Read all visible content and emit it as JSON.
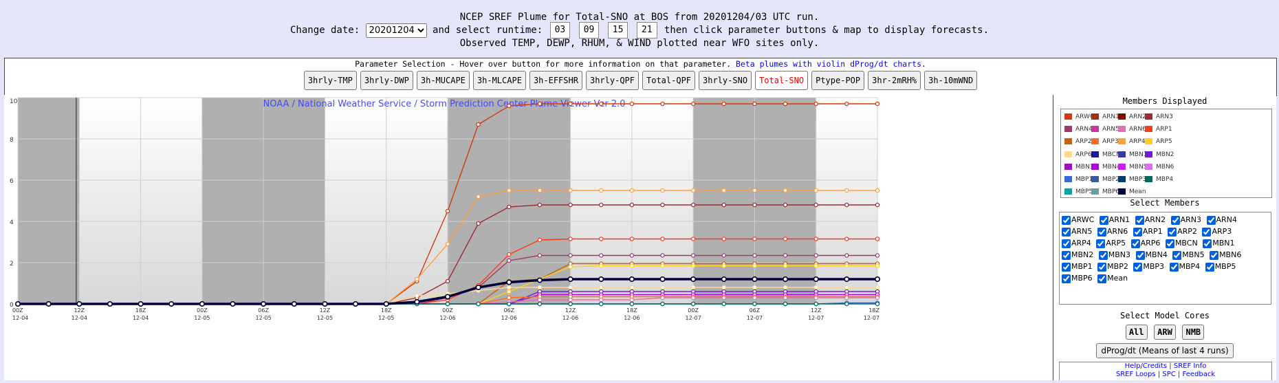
{
  "header": {
    "title_line": "NCEP SREF Plume for Total-SNO at BOS from 20201204/03 UTC run.",
    "change_date_label": "Change date:",
    "date_value": "20201204",
    "runtime_label": "and select runtime:",
    "runtimes": [
      "03",
      "09",
      "15",
      "21"
    ],
    "runtime_suffix": "then click parameter buttons & map to display forecasts.",
    "observed_note": "Observed TEMP, DEWP, RHUM, & WIND plotted near WFO sites only."
  },
  "param_panel": {
    "info_text": "Parameter Selection - Hover over button for more information on that parameter.",
    "beta_link": "Beta plumes with violin dProg/dt charts.",
    "buttons": [
      "3hrly-TMP",
      "3hrly-DWP",
      "3h-MUCAPE",
      "3h-MLCAPE",
      "3h-EFFSHR",
      "3hrly-QPF",
      "Total-QPF",
      "3hrly-SNO",
      "Total-SNO",
      "Ptype-POP",
      "3hr-2mRH%",
      "3h-10mWND"
    ],
    "active": "Total-SNO"
  },
  "chart_watermark": "NOAA / National Weather Service / Storm Prediction Center Plume Viewer Ver 2.0",
  "sidebar": {
    "members_title": "Members Displayed",
    "select_title": "Select Members",
    "cores_title": "Select Model Cores",
    "core_buttons": [
      "All",
      "ARW",
      "NMB"
    ],
    "dprog_button": "dProg/dt (Means of last 4 runs)",
    "links": {
      "help": "Help/Credits",
      "sref_info": "SREF Info",
      "loops": "SREF Loops",
      "spc": "SPC",
      "feedback": "Feedback"
    },
    "separator": "|"
  },
  "members": [
    {
      "name": "ARWC",
      "color": "#d03a10"
    },
    {
      "name": "ARN1",
      "color": "#a0330c"
    },
    {
      "name": "ARN2",
      "color": "#7a0a0a"
    },
    {
      "name": "ARN3",
      "color": "#9e2b35"
    },
    {
      "name": "ARN4",
      "color": "#a03a6a"
    },
    {
      "name": "ARN5",
      "color": "#d030a0"
    },
    {
      "name": "ARN6",
      "color": "#e070b0"
    },
    {
      "name": "ARP1",
      "color": "#ff3a1a"
    },
    {
      "name": "ARP2",
      "color": "#c86010"
    },
    {
      "name": "ARP3",
      "color": "#ff6a20"
    },
    {
      "name": "ARP4",
      "color": "#ffa040"
    },
    {
      "name": "ARP5",
      "color": "#ffd020"
    },
    {
      "name": "ARP6",
      "color": "#ffd890"
    },
    {
      "name": "MBCN",
      "color": "#1a1a9a"
    },
    {
      "name": "MBN1",
      "color": "#3a3aa0"
    },
    {
      "name": "MBN2",
      "color": "#6a20d0"
    },
    {
      "name": "MBN3",
      "color": "#9a10c0"
    },
    {
      "name": "MBN4",
      "color": "#b000e0"
    },
    {
      "name": "MBN5",
      "color": "#c820f0"
    },
    {
      "name": "MBN6",
      "color": "#d870f0"
    },
    {
      "name": "MBP1",
      "color": "#3a6ad0"
    },
    {
      "name": "MBP2",
      "color": "#3a5aa0"
    },
    {
      "name": "MBP3",
      "color": "#0a3a6a"
    },
    {
      "name": "MBP4",
      "color": "#006a5a"
    },
    {
      "name": "MBP5",
      "color": "#10a0a0"
    },
    {
      "name": "MBP6",
      "color": "#6aa0a0"
    },
    {
      "name": "Mean",
      "color": "#00003a"
    }
  ],
  "chart_data": {
    "type": "line",
    "title": "",
    "xlabel": "",
    "ylabel": "",
    "ylim": [
      0,
      10
    ],
    "y_ticks": [
      0,
      2,
      4,
      6,
      8,
      10
    ],
    "x_ticks": [
      {
        "hour": "00Z",
        "date": "12-04"
      },
      {
        "hour": "12Z",
        "date": "12-04"
      },
      {
        "hour": "18Z",
        "date": "12-04"
      },
      {
        "hour": "00Z",
        "date": "12-05"
      },
      {
        "hour": "06Z",
        "date": "12-05"
      },
      {
        "hour": "12Z",
        "date": "12-05"
      },
      {
        "hour": "18Z",
        "date": "12-05"
      },
      {
        "hour": "00Z",
        "date": "12-06"
      },
      {
        "hour": "06Z",
        "date": "12-06"
      },
      {
        "hour": "12Z",
        "date": "12-06"
      },
      {
        "hour": "18Z",
        "date": "12-06"
      },
      {
        "hour": "00Z",
        "date": "12-07"
      },
      {
        "hour": "06Z",
        "date": "12-07"
      },
      {
        "hour": "12Z",
        "date": "12-07"
      },
      {
        "hour": "18Z",
        "date": "12-07"
      }
    ],
    "n_steps": 29,
    "x_labels_at_steps": [
      0,
      2,
      4,
      6,
      8,
      10,
      12,
      14,
      16,
      18,
      20,
      22,
      24,
      26,
      28
    ],
    "night_shading_steps": [
      [
        0,
        2
      ],
      [
        6,
        10
      ],
      [
        14,
        18
      ],
      [
        22,
        26
      ]
    ],
    "run_marker_step": 1.9,
    "grid": true,
    "series": [
      {
        "name": "ARWC",
        "color": "#d03a10",
        "values": [
          0,
          0,
          0,
          0,
          0,
          0,
          0,
          0,
          0,
          0,
          0,
          0,
          0,
          1.1,
          4.5,
          8.7,
          9.6,
          9.7,
          9.7,
          9.7,
          9.7,
          9.7,
          9.7,
          9.7,
          9.7,
          9.7,
          9.7,
          9.7,
          9.7
        ]
      },
      {
        "name": "ARP4",
        "color": "#ffa040",
        "values": [
          0,
          0,
          0,
          0,
          0,
          0,
          0,
          0,
          0,
          0,
          0,
          0,
          0,
          1.2,
          2.9,
          5.2,
          5.5,
          5.5,
          5.5,
          5.5,
          5.5,
          5.5,
          5.5,
          5.5,
          5.5,
          5.5,
          5.5,
          5.5,
          5.5
        ]
      },
      {
        "name": "ARN3",
        "color": "#9e2b35",
        "values": [
          0,
          0,
          0,
          0,
          0,
          0,
          0,
          0,
          0,
          0,
          0,
          0,
          0,
          0.3,
          1.1,
          3.9,
          4.7,
          4.8,
          4.8,
          4.8,
          4.8,
          4.8,
          4.8,
          4.8,
          4.8,
          4.8,
          4.8,
          4.8,
          4.8
        ]
      },
      {
        "name": "ARP1",
        "color": "#ff3a1a",
        "values": [
          0,
          0,
          0,
          0,
          0,
          0,
          0,
          0,
          0,
          0,
          0,
          0,
          0,
          0,
          0.2,
          0.9,
          2.4,
          3.1,
          3.15,
          3.15,
          3.15,
          3.15,
          3.15,
          3.15,
          3.15,
          3.15,
          3.15,
          3.15,
          3.15
        ]
      },
      {
        "name": "ARN4",
        "color": "#a03a6a",
        "values": [
          0,
          0,
          0,
          0,
          0,
          0,
          0,
          0,
          0,
          0,
          0,
          0,
          0,
          0,
          0.3,
          0.8,
          2.1,
          2.35,
          2.35,
          2.35,
          2.35,
          2.35,
          2.35,
          2.35,
          2.35,
          2.35,
          2.35,
          2.35,
          2.35
        ]
      },
      {
        "name": "ARP2",
        "color": "#c86010",
        "values": [
          0,
          0,
          0,
          0,
          0,
          0,
          0,
          0,
          0,
          0,
          0,
          0,
          0,
          0,
          0,
          0,
          1.1,
          1.2,
          1.95,
          1.95,
          1.95,
          1.95,
          1.95,
          1.95,
          1.95,
          1.95,
          1.95,
          1.95,
          1.95
        ]
      },
      {
        "name": "ARP5",
        "color": "#ffd020",
        "values": [
          0,
          0,
          0,
          0,
          0,
          0,
          0,
          0,
          0,
          0,
          0,
          0,
          0,
          0,
          0,
          0,
          0.6,
          1.2,
          1.8,
          1.85,
          1.85,
          1.85,
          1.85,
          1.85,
          1.85,
          1.85,
          1.85,
          1.85,
          1.85
        ]
      },
      {
        "name": "ARP6",
        "color": "#ffd890",
        "values": [
          0,
          0,
          0,
          0,
          0,
          0,
          0,
          0,
          0,
          0,
          0,
          0,
          0,
          0.4,
          0.5,
          0.65,
          0.8,
          0.8,
          0.8,
          0.8,
          0.8,
          0.8,
          0.8,
          0.8,
          0.8,
          0.8,
          0.8,
          0.8,
          0.8
        ]
      },
      {
        "name": "MBN2",
        "color": "#6a20d0",
        "values": [
          0,
          0,
          0,
          0,
          0,
          0,
          0,
          0,
          0,
          0,
          0,
          0,
          0,
          0,
          0,
          0,
          0,
          0.6,
          0.6,
          0.6,
          0.6,
          0.6,
          0.6,
          0.6,
          0.6,
          0.6,
          0.6,
          0.6,
          0.6
        ]
      },
      {
        "name": "MBN4",
        "color": "#b000e0",
        "values": [
          0,
          0,
          0,
          0,
          0,
          0,
          0,
          0,
          0,
          0,
          0,
          0,
          0,
          0,
          0,
          0,
          0,
          0.45,
          0.45,
          0.45,
          0.45,
          0.45,
          0.45,
          0.45,
          0.45,
          0.45,
          0.45,
          0.45,
          0.45
        ]
      },
      {
        "name": "ARP3",
        "color": "#ff6a20",
        "values": [
          0,
          0,
          0,
          0,
          0,
          0,
          0,
          0,
          0,
          0,
          0,
          0,
          0,
          0,
          0,
          0,
          0.3,
          0.35,
          0.35,
          0.35,
          0.35,
          0.35,
          0.35,
          0.35,
          0.35,
          0.35,
          0.35,
          0.35,
          0.35
        ]
      },
      {
        "name": "ARN6",
        "color": "#e070b0",
        "values": [
          0,
          0,
          0,
          0,
          0,
          0,
          0,
          0,
          0,
          0,
          0,
          0,
          0,
          0,
          0,
          0,
          0.1,
          0.2,
          0.2,
          0.2,
          0.2,
          0.3,
          0.3,
          0.3,
          0.3,
          0.3,
          0.3,
          0.3,
          0.3
        ]
      },
      {
        "name": "MBP1",
        "color": "#3a6ad0",
        "values": [
          0,
          0,
          0,
          0,
          0,
          0,
          0,
          0,
          0,
          0,
          0,
          0,
          0,
          0,
          0,
          0,
          0,
          0,
          0,
          0,
          0,
          0,
          0,
          0,
          0,
          0,
          0,
          0.05,
          0.05
        ]
      },
      {
        "name": "MBP4",
        "color": "#006a5a",
        "values": [
          0,
          0,
          0,
          0,
          0,
          0,
          0,
          0,
          0,
          0,
          0,
          0,
          0,
          0,
          0,
          0,
          0,
          0,
          0,
          0,
          0,
          0,
          0,
          0,
          0,
          0,
          0,
          0,
          0
        ]
      },
      {
        "name": "Mean",
        "color": "#00003a",
        "values": [
          0,
          0,
          0,
          0,
          0,
          0,
          0,
          0,
          0,
          0,
          0,
          0,
          0,
          0.1,
          0.35,
          0.8,
          1.05,
          1.15,
          1.2,
          1.2,
          1.2,
          1.2,
          1.2,
          1.2,
          1.2,
          1.2,
          1.2,
          1.2,
          1.2
        ]
      }
    ]
  }
}
